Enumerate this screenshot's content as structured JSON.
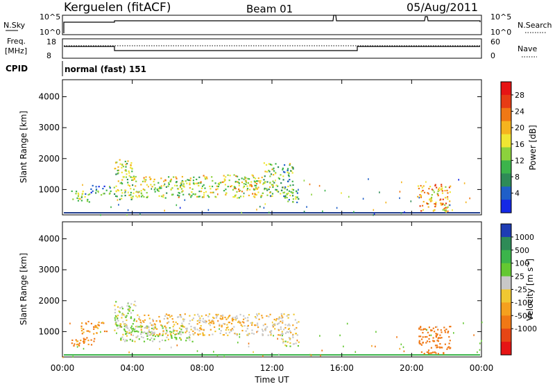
{
  "header": {
    "station": "Kerguelen (fitACF)",
    "beam": "Beam 01",
    "date": "05/Aug/2011"
  },
  "top_panels": {
    "nsky_label": "N.Sky",
    "nsearch_label": "N.Search",
    "nsky_ticks": [
      "10^5",
      "10^0"
    ],
    "nsearch_ticks": [
      "10^5",
      "10^0"
    ],
    "freq_label": "Freq.",
    "freq_unit": "[MHz]",
    "freq_ticks": [
      "18",
      "8"
    ],
    "nave_label": "Nave",
    "nave_ticks": [
      "60",
      "0"
    ],
    "cpid_label": "CPID",
    "cpid_value": "normal (fast) 151"
  },
  "chart_data": [
    {
      "type": "heatmap",
      "panel": "power",
      "ylabel": "Slant Range [km]",
      "xlabel": "",
      "x_ticks": [
        "00:00",
        "04:00",
        "08:00",
        "12:00",
        "16:00",
        "20:00",
        "00:00"
      ],
      "y_ticks": [
        "1000",
        "2000",
        "3000",
        "4000"
      ],
      "xlim_hours": [
        0,
        24
      ],
      "ylim_km": [
        180,
        4550
      ],
      "colorbar": {
        "label": "Power [dB]",
        "ticks": [
          "4",
          "8",
          "12",
          "16",
          "20",
          "24",
          "28"
        ],
        "colors": [
          "#1428e6",
          "#1f5fc8",
          "#2e8b57",
          "#3cb44b",
          "#8cd23c",
          "#f0e632",
          "#f5b41e",
          "#f07814",
          "#e63c14",
          "#e61414"
        ]
      },
      "scatter_regions": [
        {
          "t0": 0.5,
          "t1": 1.6,
          "r0": 600,
          "r1": 1000,
          "level": 14
        },
        {
          "t0": 1.6,
          "t1": 2.8,
          "r0": 850,
          "r1": 1150,
          "level": 10
        },
        {
          "t0": 2.9,
          "t1": 4.0,
          "r0": 700,
          "r1": 2000,
          "level": 16
        },
        {
          "t0": 4.0,
          "t1": 8.0,
          "r0": 750,
          "r1": 1450,
          "level": 17
        },
        {
          "t0": 8.0,
          "t1": 11.5,
          "r0": 750,
          "r1": 1500,
          "level": 18
        },
        {
          "t0": 11.5,
          "t1": 13.2,
          "r0": 800,
          "r1": 1900,
          "level": 14
        },
        {
          "t0": 12.5,
          "t1": 13.5,
          "r0": 550,
          "r1": 1000,
          "level": 12
        },
        {
          "t0": 20.3,
          "t1": 22.2,
          "r0": 300,
          "r1": 1200,
          "level": 22
        }
      ]
    },
    {
      "type": "heatmap",
      "panel": "velocity",
      "ylabel": "Slant Range [km]",
      "xlabel": "Time UT",
      "x_ticks": [
        "00:00",
        "04:00",
        "08:00",
        "12:00",
        "16:00",
        "20:00",
        "00:00"
      ],
      "y_ticks": [
        "1000",
        "2000",
        "3000",
        "4000"
      ],
      "xlim_hours": [
        0,
        24
      ],
      "ylim_km": [
        180,
        4550
      ],
      "colorbar": {
        "label": "Velocity [m s^-1]",
        "ticks": [
          "1000",
          "500",
          "100",
          "25",
          "-25",
          "-100",
          "-500",
          "-1000"
        ],
        "colors": [
          "#1e3cb4",
          "#2e8b57",
          "#3cb44b",
          "#64c832",
          "#c8c8c8",
          "#f0c832",
          "#f5a01e",
          "#f07814",
          "#e64614",
          "#e61414"
        ]
      },
      "scatter_regions": [
        {
          "t0": 0.5,
          "t1": 1.8,
          "r0": 550,
          "r1": 900,
          "level": -150
        },
        {
          "t0": 1.0,
          "t1": 2.5,
          "r0": 950,
          "r1": 1350,
          "level": -100
        },
        {
          "t0": 2.9,
          "t1": 4.2,
          "r0": 700,
          "r1": 2000,
          "level": 80
        },
        {
          "t0": 4.2,
          "t1": 13.5,
          "r0": 900,
          "r1": 1600,
          "level": 0
        },
        {
          "t0": 3.5,
          "t1": 7.5,
          "r0": 700,
          "r1": 1200,
          "level": 90
        },
        {
          "t0": 12.5,
          "t1": 13.5,
          "r0": 550,
          "r1": 1000,
          "level": 70
        },
        {
          "t0": 20.3,
          "t1": 22.2,
          "r0": 300,
          "r1": 1200,
          "level": -300
        }
      ]
    }
  ]
}
